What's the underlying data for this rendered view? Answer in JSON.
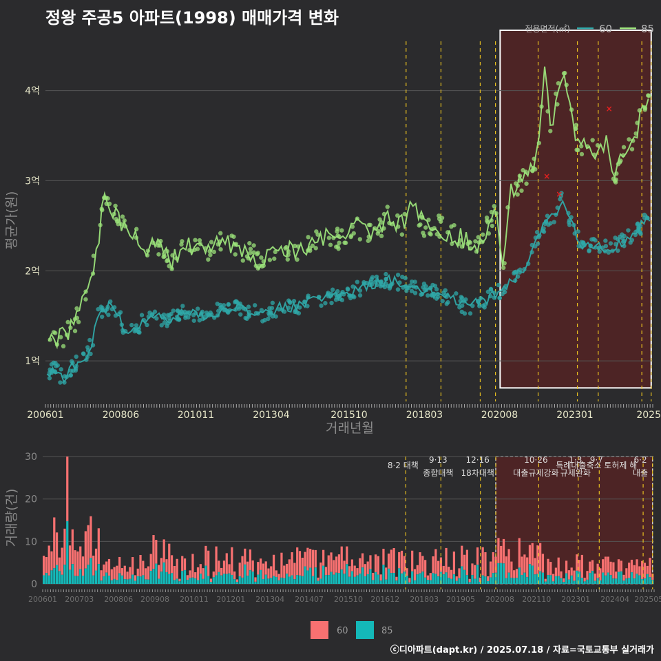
{
  "title": "정왕 주공5 아파트(1998) 매매가격 변화",
  "footer": "ⓒ디아파트(dapt.kr) / 2025.07.18 / 자료=국토교통부 실거래가",
  "colors": {
    "background": "#2b2b2d",
    "grid": "#555555",
    "series_60_price": "#2fa8a8",
    "series_85_price": "#9be27a",
    "bar_60": "#f87171",
    "bar_85": "#14b8b8",
    "policy_line": "#e8c020",
    "highlight_fill": "#5a2323",
    "outlier": "#e02020"
  },
  "chart_data": [
    {
      "type": "line",
      "id": "price",
      "title": "정왕 주공5 아파트(1998) 매매가격 변화",
      "xlabel": "거래년월",
      "ylabel": "평균가(원)",
      "x_tick_labels": [
        "200601",
        "200806",
        "201011",
        "201304",
        "201510",
        "201803",
        "202008",
        "202301",
        "2025"
      ],
      "x_tick_values": [
        2006.0,
        2008.42,
        2010.83,
        2013.25,
        2015.75,
        2018.17,
        2020.58,
        2023.0,
        2025.0
      ],
      "xlim": [
        2006.0,
        2025.5
      ],
      "y_tick_labels": [
        "1억",
        "2억",
        "3억",
        "4억"
      ],
      "y_tick_values": [
        1.0,
        2.0,
        3.0,
        4.0
      ],
      "ylim": [
        0.55,
        4.7
      ],
      "legend_title": "전용면적(㎡)",
      "legend_position": "top-right",
      "series": [
        {
          "name": "60",
          "points": [
            [
              2006.05,
              0.85
            ],
            [
              2006.3,
              0.9
            ],
            [
              2006.6,
              0.8
            ],
            [
              2006.9,
              0.95
            ],
            [
              2007.2,
              1.0
            ],
            [
              2007.5,
              1.2
            ],
            [
              2007.7,
              1.55
            ],
            [
              2008.0,
              1.6
            ],
            [
              2008.3,
              1.55
            ],
            [
              2008.6,
              1.3
            ],
            [
              2009.0,
              1.4
            ],
            [
              2009.5,
              1.5
            ],
            [
              2010.0,
              1.45
            ],
            [
              2010.5,
              1.55
            ],
            [
              2011.0,
              1.5
            ],
            [
              2011.5,
              1.55
            ],
            [
              2012.0,
              1.6
            ],
            [
              2012.5,
              1.55
            ],
            [
              2013.0,
              1.5
            ],
            [
              2013.5,
              1.6
            ],
            [
              2014.0,
              1.6
            ],
            [
              2014.5,
              1.65
            ],
            [
              2015.0,
              1.7
            ],
            [
              2015.5,
              1.75
            ],
            [
              2016.0,
              1.8
            ],
            [
              2016.5,
              1.85
            ],
            [
              2017.0,
              1.9
            ],
            [
              2017.5,
              1.85
            ],
            [
              2018.0,
              1.8
            ],
            [
              2018.5,
              1.75
            ],
            [
              2019.0,
              1.7
            ],
            [
              2019.5,
              1.6
            ],
            [
              2020.0,
              1.65
            ],
            [
              2020.5,
              1.75
            ],
            [
              2020.9,
              1.85
            ],
            [
              2021.3,
              2.0
            ],
            [
              2021.7,
              2.3
            ],
            [
              2022.0,
              2.5
            ],
            [
              2022.3,
              2.6
            ],
            [
              2022.6,
              2.8
            ],
            [
              2022.9,
              2.5
            ],
            [
              2023.2,
              2.3
            ],
            [
              2023.6,
              2.3
            ],
            [
              2024.0,
              2.25
            ],
            [
              2024.4,
              2.3
            ],
            [
              2024.8,
              2.4
            ],
            [
              2025.0,
              2.45
            ],
            [
              2025.4,
              2.6
            ]
          ],
          "range": [
            0.7,
            3.35
          ]
        },
        {
          "name": "85",
          "points": [
            [
              2006.1,
              1.2
            ],
            [
              2006.4,
              1.25
            ],
            [
              2006.7,
              1.3
            ],
            [
              2006.9,
              1.4
            ],
            [
              2007.1,
              1.5
            ],
            [
              2007.3,
              1.8
            ],
            [
              2007.5,
              2.0
            ],
            [
              2007.65,
              2.2
            ],
            [
              2007.75,
              2.5
            ],
            [
              2007.8,
              2.8
            ],
            [
              2008.8,
              2.4
            ],
            [
              2009.2,
              2.2
            ],
            [
              2009.6,
              2.3
            ],
            [
              2010.0,
              2.1
            ],
            [
              2010.5,
              2.3
            ],
            [
              2011.0,
              2.2
            ],
            [
              2011.5,
              2.3
            ],
            [
              2012.0,
              2.3
            ],
            [
              2012.5,
              2.2
            ],
            [
              2013.0,
              2.1
            ],
            [
              2013.5,
              2.3
            ],
            [
              2014.0,
              2.2
            ],
            [
              2014.5,
              2.3
            ],
            [
              2015.0,
              2.4
            ],
            [
              2015.5,
              2.35
            ],
            [
              2016.0,
              2.5
            ],
            [
              2016.5,
              2.4
            ],
            [
              2017.0,
              2.6
            ],
            [
              2017.5,
              2.5
            ],
            [
              2017.8,
              2.75
            ],
            [
              2018.2,
              2.45
            ],
            [
              2018.6,
              2.5
            ],
            [
              2019.0,
              2.4
            ],
            [
              2019.5,
              2.35
            ],
            [
              2020.0,
              2.3
            ],
            [
              2020.3,
              2.6
            ],
            [
              2020.5,
              2.65
            ],
            [
              2020.7,
              2.0
            ],
            [
              2020.9,
              2.9
            ],
            [
              2021.3,
              3.0
            ],
            [
              2021.7,
              3.2
            ],
            [
              2021.9,
              3.6
            ],
            [
              2022.05,
              4.3
            ],
            [
              2022.2,
              3.55
            ],
            [
              2022.6,
              4.25
            ],
            [
              2023.1,
              3.4
            ],
            [
              2023.7,
              3.3
            ],
            [
              2024.0,
              3.45
            ],
            [
              2024.3,
              3.0
            ],
            [
              2024.6,
              3.35
            ],
            [
              2024.9,
              3.4
            ],
            [
              2025.1,
              3.7
            ],
            [
              2025.4,
              3.9
            ]
          ],
          "range": [
            1.0,
            4.6
          ]
        }
      ],
      "outliers": [
        [
          2022.1,
          3.05
        ],
        [
          2022.5,
          2.85
        ],
        [
          2024.1,
          3.8
        ]
      ],
      "highlight_range": [
        2020.6,
        2025.45
      ],
      "policy_dates": [
        2017.58,
        2018.7,
        2019.96,
        2020.45,
        2021.82,
        2023.08,
        2023.75,
        2025.15,
        2025.45
      ]
    },
    {
      "type": "bar",
      "id": "volume",
      "xlabel": "",
      "ylabel": "거래량(건)",
      "x_tick_labels": [
        "200601",
        "200703",
        "200806",
        "200908",
        "201011",
        "201201",
        "201304",
        "201407",
        "201510",
        "201612",
        "201803",
        "201905",
        "202008",
        "202110",
        "202301",
        "202404",
        "202505"
      ],
      "x_tick_values": [
        2006.0,
        2007.17,
        2008.42,
        2009.58,
        2010.83,
        2012.0,
        2013.25,
        2014.5,
        2015.75,
        2016.92,
        2018.17,
        2019.33,
        2020.58,
        2021.75,
        2023.0,
        2024.25,
        2025.33
      ],
      "xlim": [
        2006.0,
        2025.5
      ],
      "y_tick_labels": [
        "0",
        "10",
        "20",
        "30"
      ],
      "y_tick_values": [
        0,
        10,
        20,
        30
      ],
      "ylim": [
        0,
        31
      ],
      "stacked": true,
      "legend": [
        "60",
        "85"
      ],
      "legend_position": "bottom",
      "peak_60": [
        2006.75,
        30
      ],
      "highlight_range": [
        2020.45,
        2025.45
      ],
      "policy_dates": [
        2017.58,
        2018.7,
        2019.96,
        2020.45,
        2021.82,
        2023.08,
        2023.75,
        2025.15,
        2025.45
      ],
      "annotations": [
        {
          "date_label": "",
          "text": "8·2 대책",
          "x": 2017.58,
          "row": 2
        },
        {
          "date_label": "9·13",
          "text": "종합대책",
          "x": 2018.7,
          "row": 1
        },
        {
          "date_label": "12·16",
          "text": "18차대책",
          "x": 2019.96,
          "row": 1
        },
        {
          "date_label": "10·26",
          "text": "대출규제강화",
          "x": 2021.82,
          "row": 1
        },
        {
          "date_label": "1·3",
          "text": "규제완화",
          "x": 2023.08,
          "row": 1
        },
        {
          "date_label": "9·7",
          "text": "특례대출축소 토허제 해",
          "x": 2023.75,
          "row": 2
        },
        {
          "date_label": "6·2",
          "text": "대출",
          "x": 2025.15,
          "row": 1
        }
      ]
    }
  ]
}
